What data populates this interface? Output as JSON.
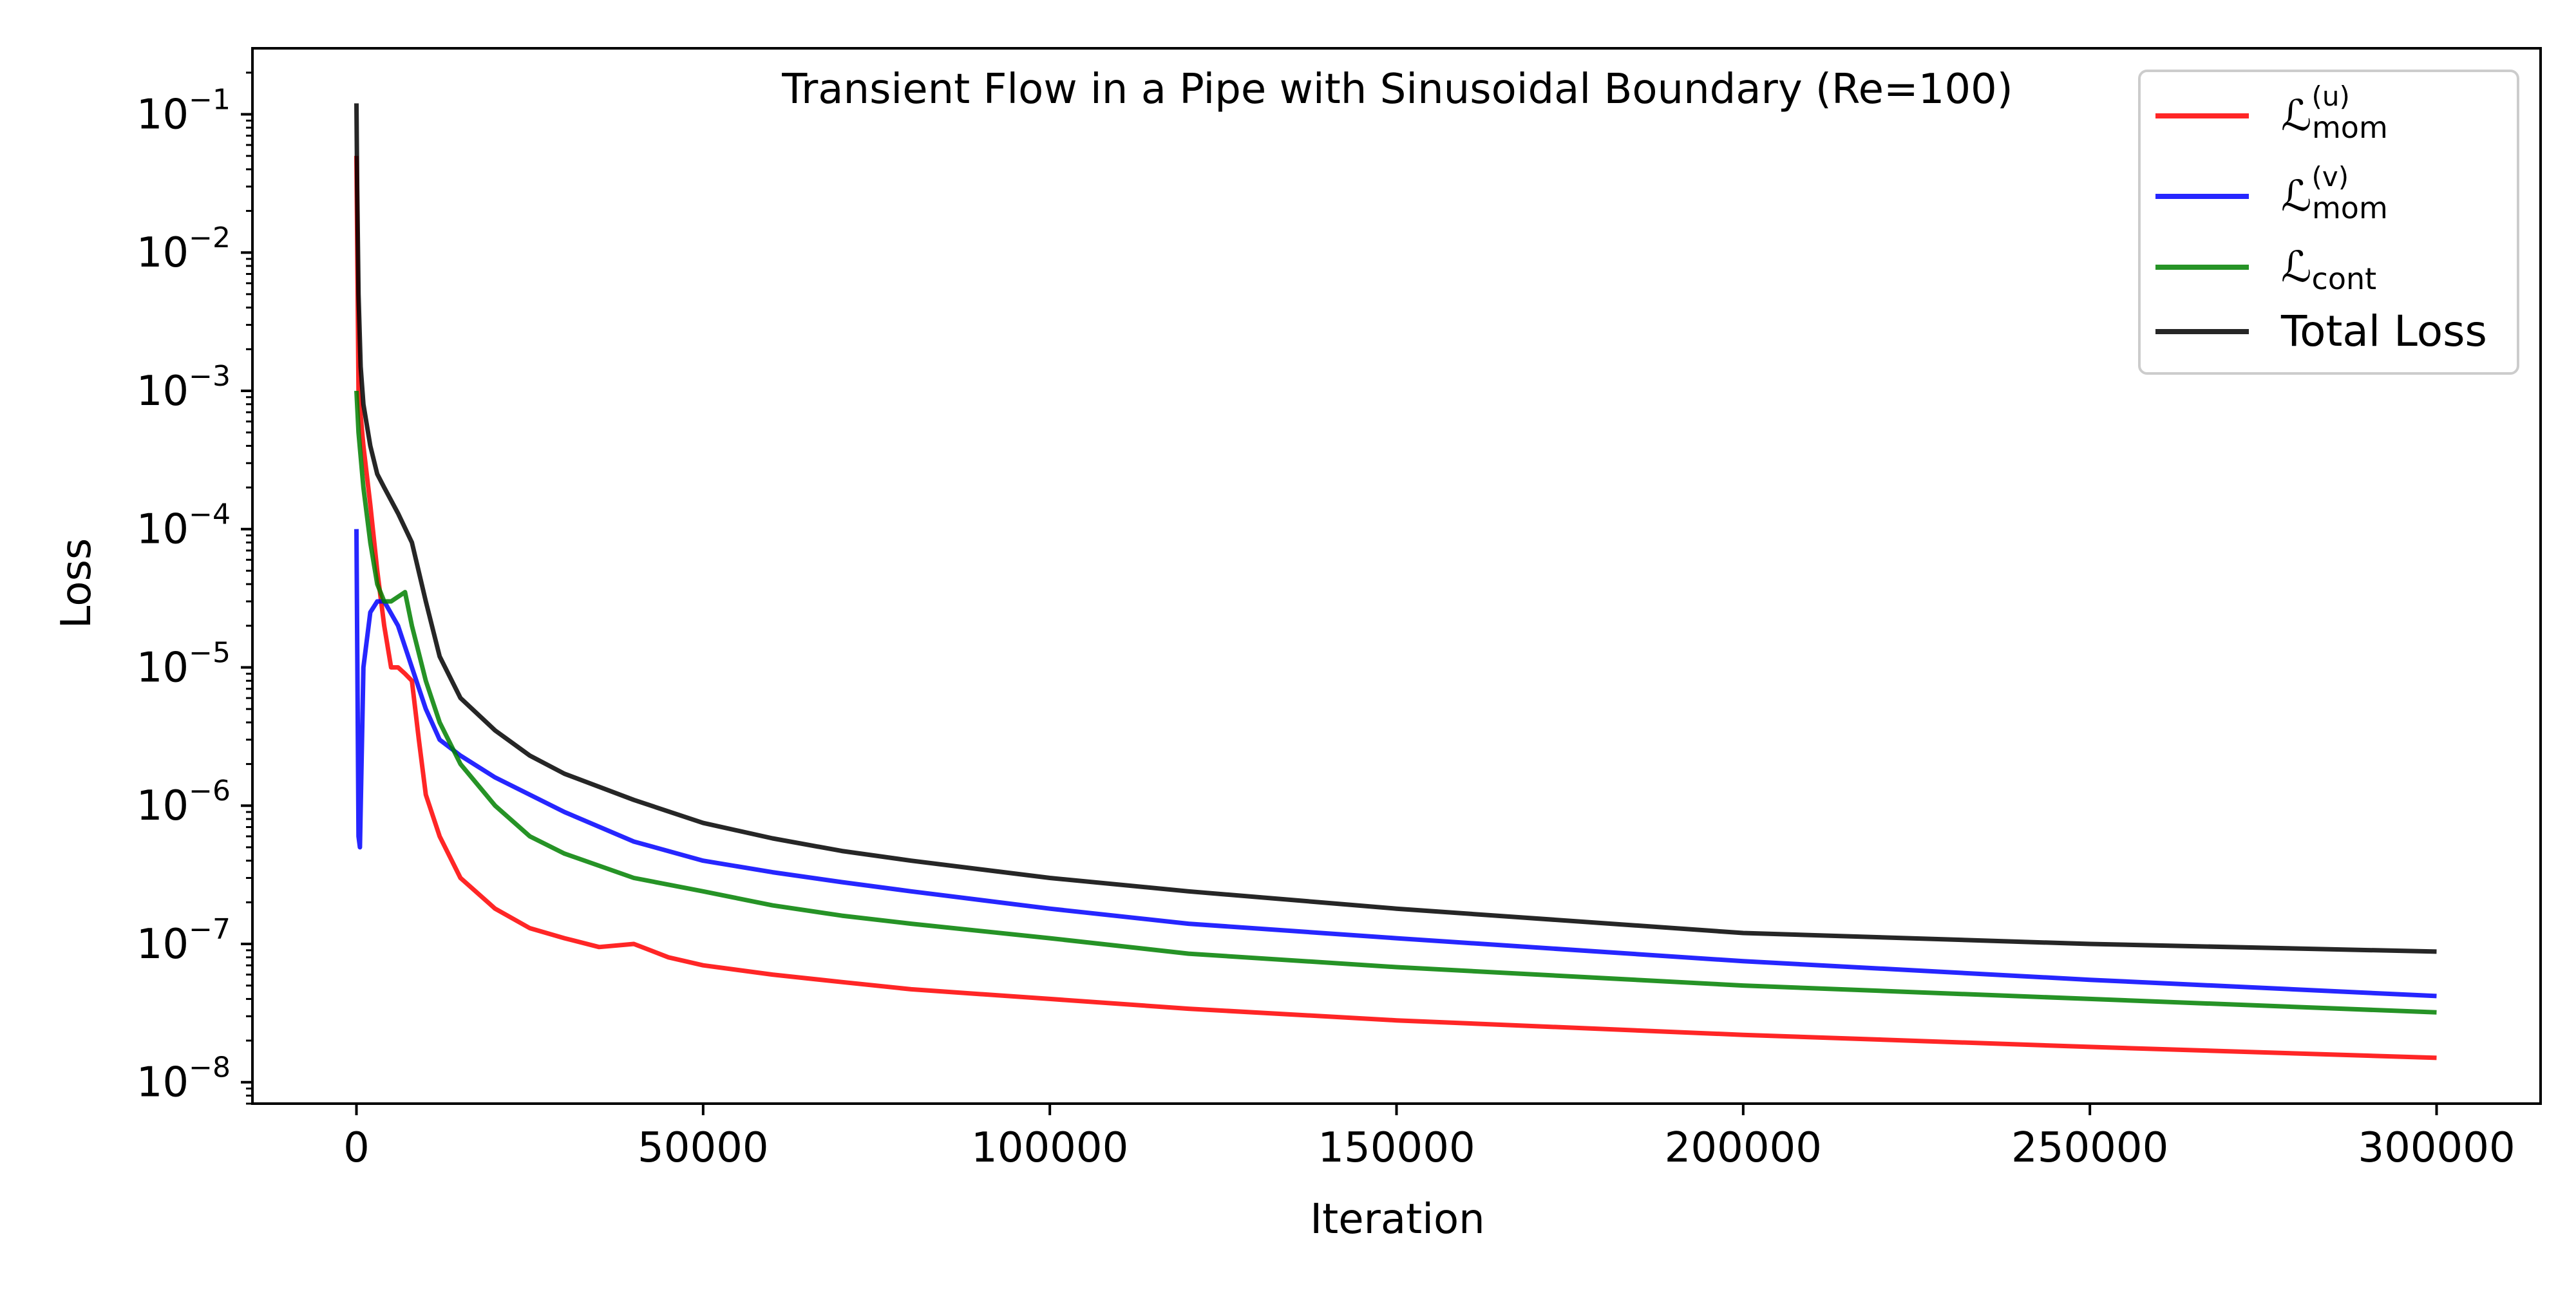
{
  "chart_data": {
    "type": "line",
    "title": "Transient Flow in a Pipe with Sinusoidal Boundary (Re=100)",
    "xlabel": "Iteration",
    "ylabel": "Loss",
    "xlim": [
      -15000,
      315000
    ],
    "ylim": [
      7e-09,
      0.3
    ],
    "y_scale": "log",
    "grid": false,
    "legend_position": "top-right",
    "x_ticks": [
      0,
      50000,
      100000,
      150000,
      200000,
      250000,
      300000
    ],
    "x_tick_labels": [
      "0",
      "50000",
      "100000",
      "150000",
      "200000",
      "250000",
      "300000"
    ],
    "y_ticks": [
      {
        "value": 1e-08,
        "base": "10",
        "exp": "−8"
      },
      {
        "value": 1e-07,
        "base": "10",
        "exp": "−7"
      },
      {
        "value": 1e-06,
        "base": "10",
        "exp": "−6"
      },
      {
        "value": 1e-05,
        "base": "10",
        "exp": "−5"
      },
      {
        "value": 0.0001,
        "base": "10",
        "exp": "−4"
      },
      {
        "value": 0.001,
        "base": "10",
        "exp": "−3"
      },
      {
        "value": 0.01,
        "base": "10",
        "exp": "−2"
      },
      {
        "value": 0.1,
        "base": "10",
        "exp": "−1"
      }
    ],
    "series": [
      {
        "name": "L_mom^(u)",
        "legend_main": "ℒ",
        "legend_sub": "mom",
        "legend_sup": "(u)",
        "color": "#ff0000",
        "x": [
          0,
          300,
          1000,
          2000,
          3000,
          4000,
          5000,
          6000,
          7000,
          8000,
          9000,
          10000,
          12000,
          15000,
          20000,
          25000,
          30000,
          35000,
          40000,
          45000,
          50000,
          60000,
          70000,
          80000,
          100000,
          120000,
          150000,
          200000,
          250000,
          300000
        ],
        "y": [
          0.05,
          0.001,
          0.0004,
          0.00015,
          5e-05,
          2e-05,
          1e-05,
          1e-05,
          9e-06,
          8e-06,
          3e-06,
          1.2e-06,
          6e-07,
          3e-07,
          1.8e-07,
          1.3e-07,
          1.1e-07,
          9.5e-08,
          1e-07,
          8e-08,
          7e-08,
          6e-08,
          5.3e-08,
          4.7e-08,
          4e-08,
          3.4e-08,
          2.8e-08,
          2.2e-08,
          1.8e-08,
          1.5e-08
        ]
      },
      {
        "name": "L_mom^(v)",
        "legend_main": "ℒ",
        "legend_sub": "mom",
        "legend_sup": "(v)",
        "color": "#0000ff",
        "x": [
          0,
          300,
          500,
          1000,
          2000,
          3000,
          4000,
          6000,
          8000,
          10000,
          12000,
          15000,
          20000,
          25000,
          30000,
          40000,
          50000,
          60000,
          70000,
          80000,
          100000,
          120000,
          150000,
          200000,
          250000,
          300000
        ],
        "y": [
          0.0001,
          6e-07,
          5e-07,
          1e-05,
          2.5e-05,
          3e-05,
          3e-05,
          2e-05,
          1e-05,
          5e-06,
          3e-06,
          2.3e-06,
          1.6e-06,
          1.2e-06,
          9e-07,
          5.5e-07,
          4e-07,
          3.3e-07,
          2.8e-07,
          2.4e-07,
          1.8e-07,
          1.4e-07,
          1.1e-07,
          7.5e-08,
          5.5e-08,
          4.2e-08
        ]
      },
      {
        "name": "L_cont",
        "legend_main": "ℒ",
        "legend_sub": "cont",
        "legend_sup": "",
        "color": "#008000",
        "x": [
          0,
          300,
          1000,
          2000,
          3000,
          4000,
          5000,
          7000,
          8000,
          10000,
          12000,
          15000,
          20000,
          25000,
          30000,
          40000,
          50000,
          60000,
          70000,
          80000,
          100000,
          120000,
          150000,
          200000,
          250000,
          300000
        ],
        "y": [
          0.001,
          0.0005,
          0.0002,
          8e-05,
          4e-05,
          3e-05,
          3e-05,
          3.5e-05,
          2e-05,
          8e-06,
          4e-06,
          2e-06,
          1e-06,
          6e-07,
          4.5e-07,
          3e-07,
          2.4e-07,
          1.9e-07,
          1.6e-07,
          1.4e-07,
          1.1e-07,
          8.5e-08,
          6.8e-08,
          5e-08,
          4e-08,
          3.2e-08
        ]
      },
      {
        "name": "Total Loss",
        "legend_main": "Total Loss",
        "legend_sub": "",
        "legend_sup": "",
        "color": "#000000",
        "x": [
          0,
          100,
          300,
          600,
          1000,
          2000,
          3000,
          4000,
          6000,
          8000,
          10000,
          12000,
          15000,
          20000,
          25000,
          30000,
          40000,
          50000,
          60000,
          70000,
          80000,
          100000,
          120000,
          150000,
          200000,
          250000,
          300000
        ],
        "y": [
          0.12,
          0.03,
          0.005,
          0.0015,
          0.0008,
          0.0004,
          0.00025,
          0.0002,
          0.00013,
          8e-05,
          3e-05,
          1.2e-05,
          6e-06,
          3.5e-06,
          2.3e-06,
          1.7e-06,
          1.1e-06,
          7.5e-07,
          5.8e-07,
          4.7e-07,
          4e-07,
          3e-07,
          2.4e-07,
          1.8e-07,
          1.2e-07,
          1e-07,
          8.8e-08
        ]
      }
    ]
  }
}
